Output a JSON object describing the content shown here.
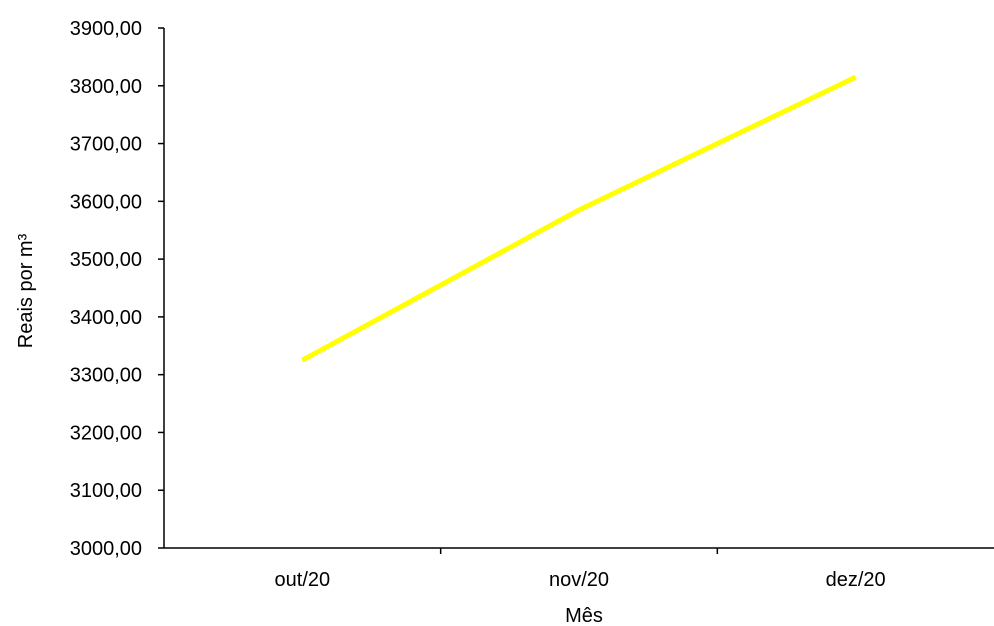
{
  "chart_data": {
    "type": "line",
    "title": "",
    "xlabel": "Mês",
    "ylabel": "Reais por m³",
    "categories": [
      "out/20",
      "nov/20",
      "dez/20"
    ],
    "series": [
      {
        "values": [
          3325.0,
          3585.0,
          3815.0
        ],
        "color": "#FFFF00"
      }
    ],
    "ylim": [
      3000,
      3900
    ],
    "yticks": [
      3000,
      3100,
      3200,
      3300,
      3400,
      3500,
      3600,
      3700,
      3800,
      3900
    ],
    "ytick_labels": [
      "3000,00",
      "3100,00",
      "3200,00",
      "3300,00",
      "3400,00",
      "3500,00",
      "3600,00",
      "3700,00",
      "3800,00",
      "3900,00"
    ],
    "grid": false,
    "legend": "none"
  }
}
